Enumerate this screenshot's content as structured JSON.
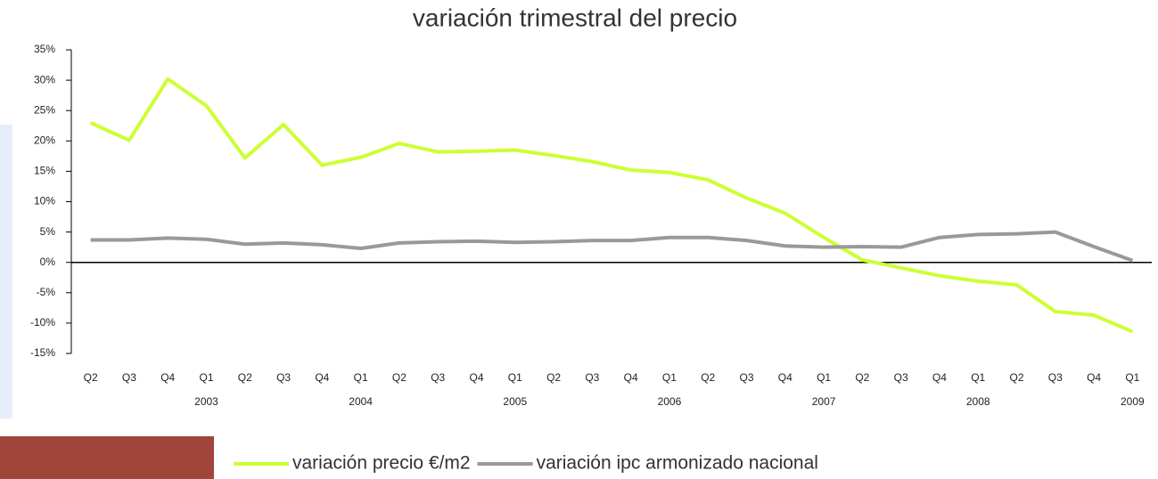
{
  "chart_data": {
    "type": "line",
    "title": "variación trimestral del precio",
    "categories": [
      "Q2",
      "Q3",
      "Q4",
      "Q1",
      "Q2",
      "Q3",
      "Q4",
      "Q1",
      "Q2",
      "Q3",
      "Q4",
      "Q1",
      "Q2",
      "Q3",
      "Q4",
      "Q1",
      "Q2",
      "Q3",
      "Q4",
      "Q1",
      "Q2",
      "Q3",
      "Q4",
      "Q1",
      "Q2",
      "Q3",
      "Q4",
      "Q1"
    ],
    "year_labels": [
      null,
      null,
      null,
      "2003",
      null,
      null,
      null,
      "2004",
      null,
      null,
      null,
      "2005",
      null,
      null,
      null,
      "2006",
      null,
      null,
      null,
      "2007",
      null,
      null,
      null,
      "2008",
      null,
      null,
      null,
      "2009"
    ],
    "series": [
      {
        "name": "variación precio €/m2",
        "color": "#ccff33",
        "values": [
          23.0,
          20.1,
          30.2,
          25.8,
          17.2,
          22.7,
          16.0,
          17.3,
          19.6,
          18.2,
          18.3,
          18.5,
          17.6,
          16.6,
          15.2,
          14.8,
          13.6,
          10.6,
          8.1,
          4.1,
          0.4,
          -0.9,
          -2.2,
          -3.1,
          -3.7,
          -8.1,
          -8.7,
          -11.4
        ]
      },
      {
        "name": "variación ipc armonizado nacional",
        "color": "#999999",
        "values": [
          3.7,
          3.7,
          4.0,
          3.8,
          3.0,
          3.2,
          2.9,
          2.3,
          3.2,
          3.4,
          3.5,
          3.3,
          3.4,
          3.6,
          3.6,
          4.1,
          4.1,
          3.6,
          2.7,
          2.5,
          2.6,
          2.5,
          4.1,
          4.6,
          4.7,
          5.0,
          2.6,
          0.3
        ]
      }
    ],
    "ylim": [
      -15,
      35
    ],
    "yticks": [
      {
        "value": -15,
        "label": "-15%"
      },
      {
        "value": -10,
        "label": "-10%"
      },
      {
        "value": -5,
        "label": "-5%"
      },
      {
        "value": 0,
        "label": "0%"
      },
      {
        "value": 5,
        "label": "5%"
      },
      {
        "value": 10,
        "label": "10%"
      },
      {
        "value": 15,
        "label": "15%"
      },
      {
        "value": 20,
        "label": "20%"
      },
      {
        "value": 25,
        "label": "25%"
      },
      {
        "value": 30,
        "label": "30%"
      },
      {
        "value": 35,
        "label": "35%"
      }
    ],
    "grid": false
  }
}
